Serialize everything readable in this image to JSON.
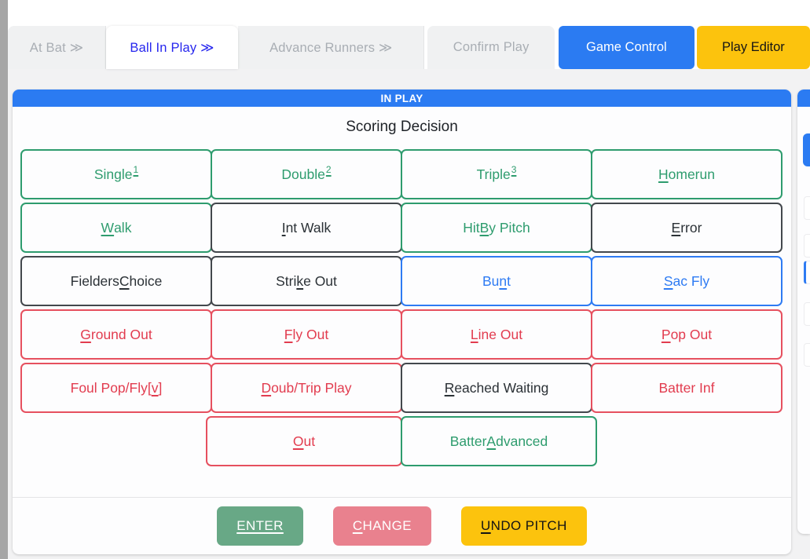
{
  "colors": {
    "header-blue": "#2b7bf2",
    "tab-active-blue": "#2626ee",
    "tab-inactive-gray": "#a9aeb4",
    "tab-bg": "#f0f1f2",
    "page-bg": "#f2f2f3",
    "left-strip-gray": "#a6a6a6",
    "card-bg": "#fdfdfe",
    "amber": "#fcc30d",
    "green": "#2e9c6e",
    "black-text": "#2b3136",
    "black-border": "#43484d",
    "blue": "#2e7bf3",
    "red": "#e23c4f",
    "red-border": "#e6505f",
    "enter-green": "#68a886",
    "change-rose": "#e9818e"
  },
  "tab_bar": {
    "tabs": [
      {
        "label": "At Bat ≫",
        "state": "inactive"
      },
      {
        "label": "Ball In Play ≫",
        "state": "active"
      },
      {
        "label": "Advance Runners ≫",
        "state": "inactive"
      },
      {
        "label": "Confirm Play",
        "state": "inactive"
      }
    ],
    "action_buttons": [
      {
        "label": "Game Control",
        "style": "blue"
      },
      {
        "label": "Play Editor",
        "style": "amber"
      }
    ]
  },
  "panel": {
    "header": "IN PLAY",
    "title": "Scoring Decision",
    "grid_rows": [
      [
        {
          "color": "green",
          "parts": [
            {
              "t": "Single"
            },
            {
              "t": "1",
              "sup": true,
              "u": true
            }
          ]
        },
        {
          "color": "green",
          "parts": [
            {
              "t": "Double"
            },
            {
              "t": "2",
              "sup": true,
              "u": true
            }
          ]
        },
        {
          "color": "green",
          "parts": [
            {
              "t": "Triple"
            },
            {
              "t": "3",
              "sup": true,
              "u": true
            }
          ]
        },
        {
          "color": "green",
          "parts": [
            {
              "t": "H",
              "u": true
            },
            {
              "t": "omerun"
            }
          ]
        }
      ],
      [
        {
          "color": "green",
          "parts": [
            {
              "t": "W",
              "u": true
            },
            {
              "t": "alk"
            }
          ]
        },
        {
          "color": "black",
          "parts": [
            {
              "t": "I",
              "u": true
            },
            {
              "t": "nt Walk"
            }
          ]
        },
        {
          "color": "green",
          "parts": [
            {
              "t": "Hit "
            },
            {
              "t": "B",
              "u": true
            },
            {
              "t": "y Pitch"
            }
          ]
        },
        {
          "color": "black",
          "parts": [
            {
              "t": "E",
              "u": true
            },
            {
              "t": "rror"
            }
          ]
        }
      ],
      [
        {
          "color": "black",
          "parts": [
            {
              "t": "Fielders "
            },
            {
              "t": "C",
              "u": true
            },
            {
              "t": "hoice"
            }
          ]
        },
        {
          "color": "black",
          "parts": [
            {
              "t": "Stri"
            },
            {
              "t": "k",
              "u": true
            },
            {
              "t": "e Out"
            }
          ]
        },
        {
          "color": "blue",
          "parts": [
            {
              "t": "Bu"
            },
            {
              "t": "n",
              "u": true
            },
            {
              "t": "t"
            }
          ]
        },
        {
          "color": "blue",
          "parts": [
            {
              "t": "S",
              "u": true
            },
            {
              "t": "ac Fly"
            }
          ]
        }
      ],
      [
        {
          "color": "red",
          "parts": [
            {
              "t": "G",
              "u": true
            },
            {
              "t": "round Out"
            }
          ]
        },
        {
          "color": "red",
          "parts": [
            {
              "t": "F",
              "u": true
            },
            {
              "t": "ly Out"
            }
          ]
        },
        {
          "color": "red",
          "parts": [
            {
              "t": "L",
              "u": true
            },
            {
              "t": "ine Out"
            }
          ]
        },
        {
          "color": "red",
          "parts": [
            {
              "t": "P",
              "u": true
            },
            {
              "t": "op Out"
            }
          ]
        }
      ],
      [
        {
          "color": "red",
          "parts": [
            {
              "t": "Foul Pop/Fly["
            },
            {
              "t": "v",
              "u": true
            },
            {
              "t": "]"
            }
          ]
        },
        {
          "color": "red",
          "parts": [
            {
              "t": "D",
              "u": true
            },
            {
              "t": "oub/Trip Play"
            }
          ]
        },
        {
          "color": "black",
          "parts": [
            {
              "t": "R",
              "u": true
            },
            {
              "t": "eached Waiting"
            }
          ]
        },
        {
          "color": "red",
          "parts": [
            {
              "t": "Batter Inf"
            }
          ]
        }
      ],
      [
        null,
        {
          "color": "red",
          "parts": [
            {
              "t": "O",
              "u": true
            },
            {
              "t": "ut"
            }
          ]
        },
        {
          "color": "green",
          "parts": [
            {
              "t": "Batter "
            },
            {
              "t": "A",
              "u": true
            },
            {
              "t": "dvanced"
            }
          ]
        },
        null
      ]
    ],
    "footer_buttons": [
      {
        "style": "green",
        "parts": [
          {
            "t": "ENTER",
            "u": true
          }
        ]
      },
      {
        "style": "rose",
        "parts": [
          {
            "t": "C",
            "u": true
          },
          {
            "t": "HANGE"
          }
        ]
      },
      {
        "style": "amber",
        "parts": [
          {
            "t": "U",
            "u": true
          },
          {
            "t": "NDO PITCH"
          }
        ]
      }
    ]
  }
}
